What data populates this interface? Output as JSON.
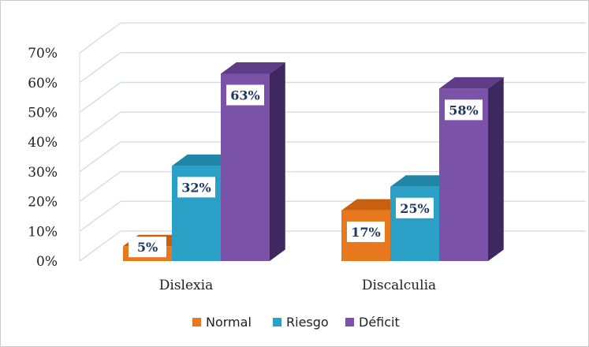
{
  "chart_data": {
    "type": "bar",
    "categories": [
      "Dislexia",
      "Discalculia"
    ],
    "series": [
      {
        "name": "Normal",
        "values": [
          5,
          17
        ],
        "labels": [
          "5%",
          "17%"
        ]
      },
      {
        "name": "Riesgo",
        "values": [
          32,
          25
        ],
        "labels": [
          "32%",
          "25%"
        ]
      },
      {
        "name": "Déficit",
        "values": [
          63,
          58
        ],
        "labels": [
          "63%",
          "58%"
        ]
      }
    ],
    "y_ticks": [
      "0%",
      "10%",
      "20%",
      "30%",
      "40%",
      "50%",
      "60%",
      "70%"
    ],
    "ylim": [
      0,
      70
    ],
    "grid": true,
    "legend": "bottom",
    "colors": {
      "Normal": {
        "front": "#e8781e",
        "top": "#c8600e",
        "side": "#a84f08"
      },
      "Riesgo": {
        "front": "#2aa0c6",
        "top": "#1f86a8",
        "side": "#17708c"
      },
      "Déficit": {
        "front": "#7a52a8",
        "top": "#5e3d86",
        "side": "#3e2860"
      }
    }
  }
}
